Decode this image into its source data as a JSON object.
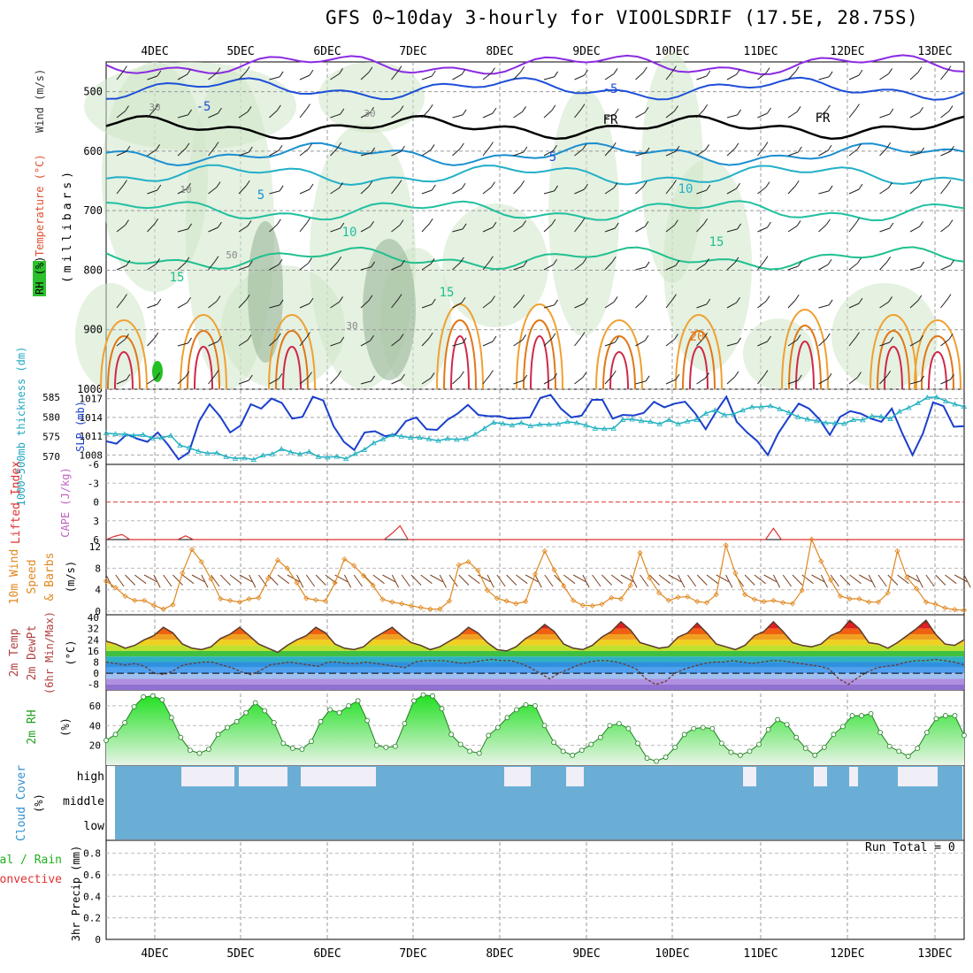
{
  "title": "GFS 0~10day 3-hourly for VIOOLSDRIF (17.5E, 28.75S)",
  "dates": [
    "4DEC",
    "5DEC",
    "6DEC",
    "7DEC",
    "8DEC",
    "9DEC",
    "10DEC",
    "11DEC",
    "12DEC",
    "13DEC"
  ],
  "run_total_label": "Run Total = 0",
  "colors": {
    "temp_hot": "#e02020",
    "slp": "#1a3fcc",
    "thickness": "#20b0c0",
    "wind": "#e08820",
    "rh": "#20c020",
    "cloud": "#6aaed6"
  },
  "chart_data": [
    {
      "type": "heatmap",
      "panel": "upper-air cross section",
      "ylabel": "(millibars)",
      "side_labels": [
        "RH (%)",
        "Temperature (°C)",
        "Wind (m/s)"
      ],
      "yticks": [
        500,
        600,
        700,
        800,
        900,
        1000
      ],
      "ylim": [
        1000,
        450
      ],
      "isotherm_labels": [
        "-5",
        "-5",
        "FR",
        "FR",
        "5",
        "5",
        "10",
        "10",
        "15",
        "15",
        "15",
        "20"
      ],
      "rh_labels": [
        "30",
        "10",
        "30",
        "50",
        "30"
      ]
    },
    {
      "type": "line",
      "panel": "thickness and SLP",
      "left_label": "1000~500mb thickness (dm)",
      "right_label": "SLP (mb)",
      "left_ticks": [
        "585",
        "580",
        "575",
        "570"
      ],
      "right_ticks": [
        "1017",
        "1014",
        "1011",
        "1008"
      ],
      "series": [
        {
          "name": "SLP (mb)",
          "values": [
            1010.2,
            1009.8,
            1011.3,
            1010.6,
            1010.1,
            1011.6,
            1009.6,
            1007.3,
            1008.4,
            1013.4,
            1016.1,
            1014.2,
            1011.6,
            1012.7,
            1016.1,
            1015.4,
            1017.0,
            1016.3,
            1013.8,
            1014.1,
            1017.3,
            1016.7,
            1012.6,
            1010.1,
            1008.8,
            1011.6,
            1011.8,
            1011.0,
            1011.3,
            1013.4,
            1014.0,
            1012.1,
            1012.0,
            1013.6,
            1014.6,
            1016.0,
            1014.4,
            1014.2,
            1014.2,
            1013.8,
            1013.9,
            1014.0,
            1017.1,
            1017.6,
            1015.4,
            1014.0,
            1014.3,
            1016.8,
            1016.8,
            1013.8,
            1014.4,
            1014.3,
            1014.7,
            1016.5,
            1015.6,
            1016.2,
            1016.5,
            1014.6,
            1012.1,
            1014.9,
            1017.3,
            1013.3,
            1011.6,
            1010.2,
            1008.0,
            1011.4,
            1013.9,
            1016.2,
            1015.4,
            1013.7,
            1011.2,
            1014.1,
            1015.0,
            1014.6,
            1013.8,
            1013.3,
            1015.4,
            1011.5,
            1008.0,
            1011.4,
            1016.4,
            1015.8,
            1012.5,
            1012.6
          ]
        },
        {
          "name": "1000~500mb thickness (dm)",
          "values": [
            575.9,
            575.7,
            575.6,
            575.3,
            575.5,
            574.6,
            574.7,
            575.3,
            572.8,
            572.2,
            571.3,
            570.8,
            570.9,
            569.9,
            569.5,
            569.6,
            569.2,
            570.3,
            570.6,
            571.9,
            571.1,
            570.6,
            571.2,
            569.9,
            569.8,
            570.0,
            569.4,
            570.7,
            571.7,
            573.4,
            574.4,
            575.4,
            575.1,
            574.8,
            574.8,
            574.4,
            574.0,
            574.5,
            574.3,
            574.5,
            575.6,
            577.1,
            578.6,
            578.3,
            577.9,
            578.5,
            577.7,
            578.1,
            578.1,
            578.2,
            578.8,
            578.5,
            577.9,
            577.1,
            577.0,
            577.1,
            579.3,
            579.4,
            579.0,
            578.8,
            578.2,
            579.3,
            578.2,
            578.9,
            579.3,
            580.9,
            581.7,
            580.5,
            580.7,
            581.7,
            582.5,
            582.5,
            582.8,
            582.0,
            581.1,
            580.0,
            579.4,
            579.0,
            578.5,
            578.4,
            578.3,
            579.3,
            579.2,
            580.2,
            580.1,
            579.5,
            581.4,
            582.3,
            583.5,
            584.9,
            585.0,
            584.0,
            583.2,
            582.6
          ]
        }
      ]
    },
    {
      "type": "line",
      "panel": "Lifted Index / CAPE",
      "left_label": "Lifted Index",
      "right_label": "CAPE (J/kg)",
      "yticks": [
        "-6",
        "-3",
        "0",
        "3",
        "6"
      ],
      "series": [
        {
          "name": "Lifted Index",
          "values": [
            6,
            5.5,
            5.2,
            6,
            6,
            6,
            6,
            6,
            6,
            6,
            5.4,
            6,
            6,
            6,
            6,
            6,
            6,
            6,
            6,
            6,
            6,
            6,
            6,
            6,
            6,
            6,
            6,
            6,
            6,
            6,
            6,
            6,
            6,
            6,
            6,
            6,
            5.0,
            3.8,
            6,
            6,
            6,
            6,
            6,
            6,
            6,
            6,
            6,
            6,
            6,
            6,
            6,
            6,
            6,
            6,
            6,
            6,
            6,
            6,
            6,
            6,
            6,
            6,
            6,
            6,
            6,
            6,
            6,
            6,
            6,
            6,
            6,
            6,
            6,
            6,
            6,
            6,
            6,
            6,
            6,
            6,
            6,
            6,
            6,
            6,
            4.2,
            6,
            6,
            6,
            6,
            6,
            6,
            6,
            6,
            6,
            6,
            6,
            6,
            6,
            6,
            6,
            6,
            6,
            6,
            6,
            6,
            6,
            6,
            6,
            6
          ]
        }
      ]
    },
    {
      "type": "line",
      "panel": "10m wind",
      "left_label": "10m Wind Speed & Barbs",
      "ylabel": "(m/s)",
      "yticks": [
        0,
        4,
        8,
        12
      ],
      "series": [
        {
          "name": "10m Wind Speed",
          "values": [
            5.6,
            4.4,
            2.8,
            2.0,
            2.0,
            1.1,
            0.4,
            1.2,
            7.1,
            11.5,
            9.2,
            6.0,
            2.3,
            2.0,
            1.7,
            2.3,
            2.5,
            6.1,
            9.5,
            8.0,
            5.3,
            2.4,
            2.1,
            1.9,
            5.3,
            9.7,
            8.5,
            6.6,
            4.8,
            2.2,
            1.7,
            1.4,
            1.0,
            0.7,
            0.4,
            0.4,
            1.9,
            8.6,
            9.2,
            7.6,
            3.9,
            2.4,
            1.9,
            1.4,
            1.8,
            6.9,
            11.2,
            7.7,
            4.7,
            2.0,
            1.1,
            1.0,
            1.3,
            2.5,
            2.3,
            4.8,
            10.9,
            6.2,
            3.4,
            2.0,
            2.6,
            2.7,
            1.8,
            1.6,
            3.1,
            12.3,
            7.1,
            3.1,
            2.2,
            1.8,
            2.0,
            1.6,
            1.4,
            3.9,
            13.4,
            9.3,
            5.8,
            2.8,
            2.3,
            2.3,
            1.7,
            1.7,
            3.4,
            11.2,
            6.3,
            4.2,
            1.7,
            1.3,
            0.6,
            0.3,
            0.2
          ]
        }
      ]
    },
    {
      "type": "area",
      "panel": "2m temperature",
      "left_label": "2m Temp 2m DewPt (6hr Min/Max)",
      "ylabel": "(°C)",
      "yticks": [
        "40",
        "32",
        "24",
        "16",
        "8",
        "0",
        "-8"
      ],
      "series": [
        {
          "name": "2m Temp",
          "values": [
            23,
            21,
            18,
            20,
            24,
            27,
            33,
            29,
            21,
            18,
            17,
            19,
            25,
            28,
            33,
            27,
            21,
            18,
            15,
            20,
            24,
            27,
            33,
            29,
            21,
            18,
            17,
            19,
            25,
            29,
            33,
            27,
            22,
            20,
            17,
            19,
            23,
            27,
            33,
            29,
            22,
            17,
            16,
            19,
            25,
            29,
            35,
            30,
            21,
            18,
            17,
            20,
            26,
            30,
            37,
            31,
            22,
            20,
            18,
            19,
            26,
            29,
            36,
            29,
            21,
            19,
            17,
            20,
            27,
            30,
            37,
            30,
            22,
            20,
            19,
            21,
            27,
            30,
            38,
            32,
            22,
            21,
            18,
            22,
            27,
            32,
            38,
            28,
            21,
            20,
            24
          ]
        },
        {
          "name": "2m DewPt",
          "values": [
            8,
            7,
            6,
            7,
            5,
            0,
            -1,
            2,
            6,
            7,
            8,
            8,
            6,
            4,
            1,
            -1,
            2,
            6,
            7,
            8,
            7,
            6,
            5,
            8,
            8,
            7,
            7,
            8,
            7,
            6,
            5,
            4,
            8,
            9,
            9,
            9,
            8,
            7,
            8,
            9,
            10,
            9,
            9,
            7,
            4,
            0,
            -4,
            0,
            3,
            6,
            8,
            9,
            9,
            8,
            6,
            3,
            -4,
            -8,
            -6,
            0,
            3,
            5,
            7,
            8,
            8,
            9,
            8,
            7,
            8,
            9,
            9,
            8,
            7,
            6,
            5,
            3,
            -4,
            -8,
            -3,
            1,
            4,
            5,
            6,
            8,
            9,
            9,
            10,
            9,
            8,
            6
          ]
        }
      ]
    },
    {
      "type": "area",
      "panel": "2m RH",
      "left_label": "2m RH",
      "ylabel": "(%)",
      "yticks": [
        20,
        40,
        60
      ],
      "series": [
        {
          "name": "2m RH",
          "values": [
            25,
            31,
            43,
            59,
            69,
            70,
            66,
            48,
            28,
            15,
            12,
            16,
            31,
            38,
            44,
            53,
            63,
            55,
            43,
            22,
            17,
            16,
            24,
            44,
            56,
            53,
            60,
            65,
            45,
            20,
            18,
            19,
            42,
            65,
            71,
            70,
            57,
            31,
            21,
            14,
            12,
            30,
            38,
            48,
            56,
            61,
            60,
            40,
            23,
            14,
            10,
            15,
            21,
            28,
            40,
            42,
            37,
            22,
            7,
            4,
            8,
            18,
            31,
            37,
            38,
            37,
            22,
            13,
            10,
            14,
            21,
            36,
            46,
            41,
            28,
            17,
            10,
            18,
            31,
            39,
            50,
            50,
            52,
            33,
            19,
            14,
            9,
            17,
            33,
            47,
            50,
            50,
            30
          ]
        }
      ]
    },
    {
      "type": "bar",
      "panel": "cloud cover",
      "left_label": "Cloud Cover",
      "ylabel": "(%)",
      "levels": [
        "high",
        "middle",
        "low"
      ]
    },
    {
      "type": "bar",
      "panel": "3hr precipitation",
      "left_label": "3hr Precip (mm)",
      "side_labels": [
        "Total / Rain",
        "Convective"
      ],
      "yticks": [
        "0.8",
        "0.6",
        "0.4",
        "0.2",
        "0"
      ],
      "values": []
    }
  ]
}
